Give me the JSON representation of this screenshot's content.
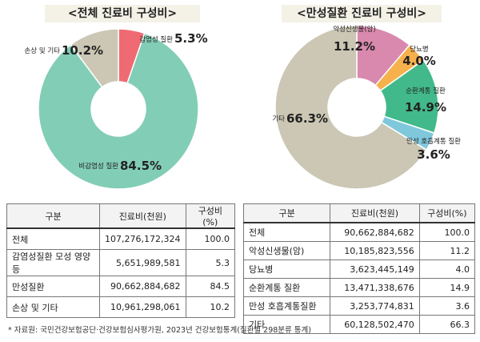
{
  "charts": {
    "left_title": "<전체 진료비 구성비>",
    "right_title": "<만성질환 진료비 구성비>"
  },
  "chart_data": [
    {
      "type": "pie",
      "title": "<전체 진료비 구성비>",
      "slices": [
        {
          "name": "감염성 질환",
          "value": 5.3,
          "value_label": "5.3%",
          "color": "#ef6a73"
        },
        {
          "name": "비감염성 질환",
          "value": 84.5,
          "value_label": "84.5%",
          "color": "#82cdb6"
        },
        {
          "name": "손상 및 기타",
          "value": 10.2,
          "value_label": "10.2%",
          "color": "#cbc7b4"
        }
      ]
    },
    {
      "type": "pie",
      "title": "<만성질환 진료비 구성비>",
      "slices": [
        {
          "name": "악성신생물(암)",
          "value": 11.2,
          "value_label": "11.2%",
          "color": "#d989ad"
        },
        {
          "name": "당뇨병",
          "value": 4.0,
          "value_label": "4.0%",
          "color": "#f6b04c"
        },
        {
          "name": "순환계통 질환",
          "value": 14.9,
          "value_label": "14.9%",
          "color": "#42b98a"
        },
        {
          "name": "만성 호흡계통 질환",
          "value": 3.6,
          "value_label": "3.6%",
          "color": "#7fc8dc"
        },
        {
          "name": "기타",
          "value": 66.3,
          "value_label": "66.3%",
          "color": "#cbc7b4"
        }
      ]
    }
  ],
  "table_left": {
    "headers": [
      "구분",
      "진료비(천원)",
      "구성비(%)"
    ],
    "rows": [
      {
        "name": "전체",
        "cost": "107,276,172,324",
        "ratio": "100.0"
      },
      {
        "name": "감염성질환 모성 영양등",
        "cost": "5,651,989,581",
        "ratio": "5.3"
      },
      {
        "name": "만성질환",
        "cost": "90,662,884,682",
        "ratio": "84.5"
      },
      {
        "name": "손상 및 기타",
        "cost": "10,961,298,061",
        "ratio": "10.2"
      }
    ]
  },
  "table_right": {
    "headers": [
      "구분",
      "진료비(천원)",
      "구성비(%)"
    ],
    "rows": [
      {
        "name": "전체",
        "cost": "90,662,884,682",
        "ratio": "100.0"
      },
      {
        "name": "악성신생물(암)",
        "cost": "10,185,823,556",
        "ratio": "11.2"
      },
      {
        "name": "당뇨병",
        "cost": "3,623,445,149",
        "ratio": "4.0"
      },
      {
        "name": "순환계통 질환",
        "cost": "13,471,338,676",
        "ratio": "14.9"
      },
      {
        "name": "만성 호흡계통질환",
        "cost": "3,253,774,831",
        "ratio": "3.6"
      },
      {
        "name": "기타",
        "cost": "60,128,502,470",
        "ratio": "66.3"
      }
    ]
  },
  "footnote": "* 자료원: 국민건강보험공단·건강보험심사평가원, 2023년 건강보험통계(질환별 298분류 통계)"
}
